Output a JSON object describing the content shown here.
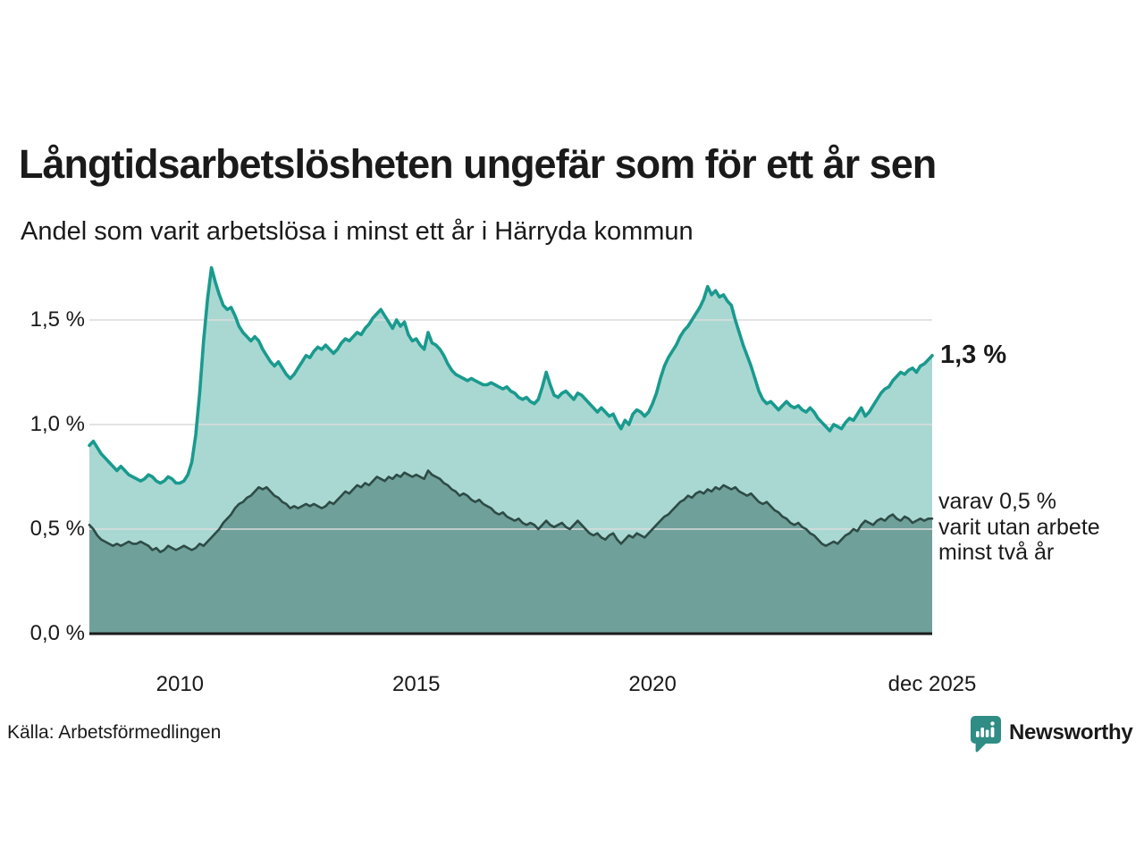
{
  "colors": {
    "line_one_year": "#1a9a8e",
    "fill_one_year": "#a9d8d2",
    "line_two_years": "#2e4b46",
    "fill_two_years": "#6fa09a",
    "gridline": "#dcdcdc",
    "axis_line": "#1a1a1a",
    "text": "#1a1a1a",
    "brand_teal": "#2f8d85"
  },
  "footer": {
    "source": "Källa: Arbetsförmedlingen",
    "brand": "Newsworthy"
  },
  "chart_data": {
    "type": "area",
    "title": "Långtidsarbetslösheten ungefär som för ett år sen",
    "subtitle": "Andel som varit arbetslösa i minst ett år i Härryda kommun",
    "unit": "%",
    "x_start": 2008.0833,
    "x_step_months": 1,
    "x_end": 2025.9167,
    "ylim": [
      0,
      1.82
    ],
    "grid": true,
    "legend_position": "right-annotations",
    "y_ticks": [
      {
        "label": "0,0 %",
        "value": 0.0
      },
      {
        "label": "0,5 %",
        "value": 0.5
      },
      {
        "label": "1,0 %",
        "value": 1.0
      },
      {
        "label": "1,5 %",
        "value": 1.5
      }
    ],
    "x_ticks": [
      {
        "label": "2010",
        "year": 2010.0
      },
      {
        "label": "2015",
        "year": 2015.0
      },
      {
        "label": "2020",
        "year": 2020.0
      },
      {
        "label": "dec 2025",
        "year": 2025.917
      }
    ],
    "annotations": {
      "latest": "1,3 %",
      "varav": [
        "varav 0,5 %",
        "varit utan arbete",
        "minst två år"
      ]
    },
    "series": [
      {
        "name": "Andel arbetslösa minst ett år",
        "latest_value": 1.3,
        "values": [
          0.9,
          0.92,
          0.89,
          0.86,
          0.84,
          0.82,
          0.8,
          0.78,
          0.8,
          0.78,
          0.76,
          0.75,
          0.74,
          0.73,
          0.74,
          0.76,
          0.75,
          0.73,
          0.72,
          0.73,
          0.75,
          0.74,
          0.72,
          0.72,
          0.73,
          0.76,
          0.82,
          0.95,
          1.15,
          1.4,
          1.6,
          1.75,
          1.68,
          1.62,
          1.57,
          1.55,
          1.56,
          1.52,
          1.47,
          1.44,
          1.42,
          1.4,
          1.42,
          1.4,
          1.36,
          1.33,
          1.3,
          1.28,
          1.3,
          1.27,
          1.24,
          1.22,
          1.24,
          1.27,
          1.3,
          1.33,
          1.32,
          1.35,
          1.37,
          1.36,
          1.38,
          1.36,
          1.34,
          1.36,
          1.39,
          1.41,
          1.4,
          1.42,
          1.44,
          1.43,
          1.46,
          1.48,
          1.51,
          1.53,
          1.55,
          1.52,
          1.49,
          1.46,
          1.5,
          1.47,
          1.49,
          1.43,
          1.4,
          1.41,
          1.38,
          1.36,
          1.44,
          1.39,
          1.38,
          1.36,
          1.33,
          1.29,
          1.26,
          1.24,
          1.23,
          1.22,
          1.21,
          1.22,
          1.21,
          1.2,
          1.19,
          1.19,
          1.2,
          1.19,
          1.18,
          1.17,
          1.18,
          1.16,
          1.15,
          1.13,
          1.12,
          1.13,
          1.11,
          1.1,
          1.12,
          1.18,
          1.25,
          1.19,
          1.14,
          1.13,
          1.15,
          1.16,
          1.14,
          1.12,
          1.15,
          1.14,
          1.12,
          1.1,
          1.08,
          1.06,
          1.08,
          1.06,
          1.04,
          1.05,
          1.01,
          0.98,
          1.02,
          1.0,
          1.05,
          1.07,
          1.06,
          1.04,
          1.06,
          1.1,
          1.15,
          1.22,
          1.28,
          1.32,
          1.35,
          1.38,
          1.42,
          1.45,
          1.47,
          1.5,
          1.53,
          1.56,
          1.6,
          1.66,
          1.62,
          1.64,
          1.61,
          1.62,
          1.59,
          1.57,
          1.5,
          1.44,
          1.38,
          1.33,
          1.28,
          1.22,
          1.16,
          1.12,
          1.1,
          1.11,
          1.09,
          1.07,
          1.09,
          1.11,
          1.09,
          1.08,
          1.09,
          1.07,
          1.06,
          1.08,
          1.06,
          1.03,
          1.01,
          0.99,
          0.97,
          1.0,
          0.99,
          0.98,
          1.01,
          1.03,
          1.02,
          1.05,
          1.08,
          1.04,
          1.06,
          1.09,
          1.12,
          1.15,
          1.17,
          1.18,
          1.21,
          1.23,
          1.25,
          1.24,
          1.26,
          1.27,
          1.25,
          1.28,
          1.29,
          1.31,
          1.33
        ]
      },
      {
        "name": "varav utan arbete minst två år",
        "latest_value": 0.5,
        "values": [
          0.52,
          0.5,
          0.47,
          0.45,
          0.44,
          0.43,
          0.42,
          0.43,
          0.42,
          0.43,
          0.44,
          0.43,
          0.43,
          0.44,
          0.43,
          0.42,
          0.4,
          0.41,
          0.39,
          0.4,
          0.42,
          0.41,
          0.4,
          0.41,
          0.42,
          0.41,
          0.4,
          0.41,
          0.43,
          0.42,
          0.44,
          0.46,
          0.48,
          0.5,
          0.53,
          0.55,
          0.57,
          0.6,
          0.62,
          0.63,
          0.65,
          0.66,
          0.68,
          0.7,
          0.69,
          0.7,
          0.68,
          0.66,
          0.65,
          0.63,
          0.62,
          0.6,
          0.61,
          0.6,
          0.61,
          0.62,
          0.61,
          0.62,
          0.61,
          0.6,
          0.61,
          0.63,
          0.62,
          0.64,
          0.66,
          0.68,
          0.67,
          0.69,
          0.71,
          0.7,
          0.72,
          0.71,
          0.73,
          0.75,
          0.74,
          0.73,
          0.75,
          0.74,
          0.76,
          0.75,
          0.77,
          0.76,
          0.75,
          0.76,
          0.75,
          0.74,
          0.78,
          0.76,
          0.75,
          0.74,
          0.72,
          0.71,
          0.69,
          0.68,
          0.66,
          0.67,
          0.66,
          0.64,
          0.63,
          0.64,
          0.62,
          0.61,
          0.6,
          0.58,
          0.57,
          0.58,
          0.56,
          0.55,
          0.54,
          0.55,
          0.53,
          0.52,
          0.53,
          0.52,
          0.5,
          0.52,
          0.54,
          0.52,
          0.51,
          0.52,
          0.53,
          0.51,
          0.5,
          0.52,
          0.54,
          0.52,
          0.5,
          0.48,
          0.47,
          0.48,
          0.46,
          0.45,
          0.47,
          0.48,
          0.45,
          0.43,
          0.45,
          0.47,
          0.46,
          0.48,
          0.47,
          0.46,
          0.48,
          0.5,
          0.52,
          0.54,
          0.56,
          0.57,
          0.59,
          0.61,
          0.63,
          0.64,
          0.66,
          0.65,
          0.67,
          0.68,
          0.67,
          0.69,
          0.68,
          0.7,
          0.69,
          0.71,
          0.7,
          0.69,
          0.7,
          0.68,
          0.67,
          0.66,
          0.67,
          0.65,
          0.63,
          0.62,
          0.63,
          0.61,
          0.59,
          0.58,
          0.56,
          0.55,
          0.53,
          0.52,
          0.53,
          0.51,
          0.5,
          0.48,
          0.47,
          0.45,
          0.43,
          0.42,
          0.43,
          0.44,
          0.43,
          0.45,
          0.47,
          0.48,
          0.5,
          0.49,
          0.52,
          0.54,
          0.53,
          0.52,
          0.54,
          0.55,
          0.54,
          0.56,
          0.57,
          0.55,
          0.54,
          0.56,
          0.55,
          0.53,
          0.54,
          0.55,
          0.54,
          0.55,
          0.55
        ]
      }
    ]
  }
}
